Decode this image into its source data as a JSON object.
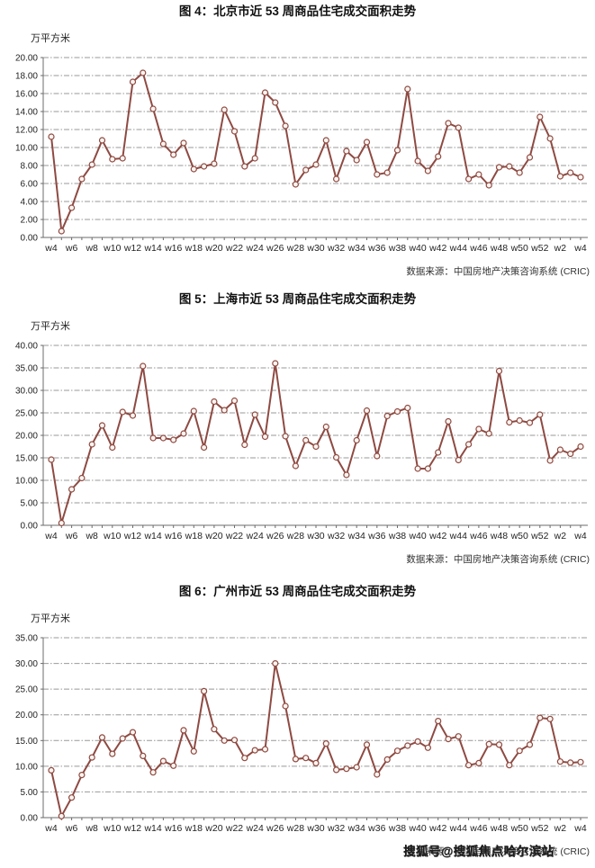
{
  "watermark": {
    "text": "搜狐号@搜狐焦点哈尔滨站"
  },
  "chart_data": [
    {
      "type": "line",
      "title": "图 4：北京市近 53 周商品住宅成交面积走势",
      "unit_label": "万平方米",
      "source": "数据来源：中国房地产决策咨询系统 (CRIC)",
      "ylim": [
        0,
        20
      ],
      "ytick_step": 2,
      "x_tick_interval": 2,
      "grid": true,
      "legend": "none",
      "line_color": "#8e4a42",
      "marker_fill": "#fdf4f0",
      "categories": [
        "w4",
        "w5",
        "w6",
        "w7",
        "w8",
        "w9",
        "w10",
        "w11",
        "w12",
        "w13",
        "w14",
        "w15",
        "w16",
        "w17",
        "w18",
        "w19",
        "w20",
        "w21",
        "w22",
        "w23",
        "w24",
        "w25",
        "w26",
        "w27",
        "w28",
        "w29",
        "w30",
        "w31",
        "w32",
        "w33",
        "w34",
        "w35",
        "w36",
        "w37",
        "w38",
        "w39",
        "w40",
        "w41",
        "w42",
        "w43",
        "w44",
        "w45",
        "w46",
        "w47",
        "w48",
        "w49",
        "w50",
        "w51",
        "w52",
        "w1",
        "w2",
        "w3",
        "w4"
      ],
      "values": [
        11.2,
        0.7,
        3.3,
        6.5,
        8.1,
        10.8,
        8.7,
        8.8,
        17.3,
        18.3,
        14.3,
        10.4,
        9.2,
        10.5,
        7.6,
        7.9,
        8.2,
        14.2,
        11.8,
        7.9,
        8.8,
        16.1,
        15.0,
        12.4,
        5.9,
        7.5,
        8.1,
        10.8,
        6.5,
        9.6,
        8.6,
        10.6,
        7.0,
        7.2,
        9.7,
        16.5,
        8.5,
        7.4,
        9.0,
        12.7,
        12.2,
        6.5,
        7.0,
        5.8,
        7.8,
        7.9,
        7.2,
        8.9,
        13.4,
        11.0,
        6.8,
        7.2,
        6.7
      ]
    },
    {
      "type": "line",
      "title": "图 5：上海市近 53 周商品住宅成交面积走势",
      "unit_label": "万平方米",
      "source": "数据来源：中国房地产决策咨询系统 (CRIC)",
      "ylim": [
        0,
        40
      ],
      "ytick_step": 5,
      "x_tick_interval": 2,
      "grid": true,
      "legend": "none",
      "line_color": "#8e4a42",
      "marker_fill": "#fdf4f0",
      "categories": [
        "w4",
        "w5",
        "w6",
        "w7",
        "w8",
        "w9",
        "w10",
        "w11",
        "w12",
        "w13",
        "w14",
        "w15",
        "w16",
        "w17",
        "w18",
        "w19",
        "w20",
        "w21",
        "w22",
        "w23",
        "w24",
        "w25",
        "w26",
        "w27",
        "w28",
        "w29",
        "w30",
        "w31",
        "w32",
        "w33",
        "w34",
        "w35",
        "w36",
        "w37",
        "w38",
        "w39",
        "w40",
        "w41",
        "w42",
        "w43",
        "w44",
        "w45",
        "w46",
        "w47",
        "w48",
        "w49",
        "w50",
        "w51",
        "w52",
        "w1",
        "w2",
        "w3",
        "w4"
      ],
      "values": [
        14.6,
        0.5,
        8.0,
        10.5,
        18.0,
        22.2,
        17.3,
        25.2,
        24.4,
        35.4,
        19.4,
        19.4,
        19.0,
        20.4,
        25.4,
        17.3,
        27.5,
        25.6,
        27.7,
        17.9,
        24.6,
        19.7,
        36.0,
        19.8,
        13.2,
        18.9,
        17.5,
        21.9,
        15.1,
        11.2,
        18.9,
        25.5,
        15.4,
        24.3,
        25.3,
        26.1,
        12.6,
        12.6,
        16.2,
        23.1,
        14.5,
        18.0,
        21.4,
        20.4,
        34.3,
        22.9,
        23.3,
        22.8,
        24.6,
        14.4,
        16.8,
        15.9,
        17.5
      ]
    },
    {
      "type": "line",
      "title": "图 6：广州市近 53 周商品住宅成交面积走势",
      "unit_label": "万平方米",
      "source": "数据来源：中国房地产决策咨询系统 (CRIC)",
      "ylim": [
        0,
        35
      ],
      "ytick_step": 5,
      "x_tick_interval": 2,
      "grid": true,
      "legend": "none",
      "line_color": "#8e4a42",
      "marker_fill": "#fdf4f0",
      "categories": [
        "w4",
        "w5",
        "w6",
        "w7",
        "w8",
        "w9",
        "w10",
        "w11",
        "w12",
        "w13",
        "w14",
        "w15",
        "w16",
        "w17",
        "w18",
        "w19",
        "w20",
        "w21",
        "w22",
        "w23",
        "w24",
        "w25",
        "w26",
        "w27",
        "w28",
        "w29",
        "w30",
        "w31",
        "w32",
        "w33",
        "w34",
        "w35",
        "w36",
        "w37",
        "w38",
        "w39",
        "w40",
        "w41",
        "w42",
        "w43",
        "w44",
        "w45",
        "w46",
        "w47",
        "w48",
        "w49",
        "w50",
        "w51",
        "w52",
        "w1",
        "w2",
        "w3",
        "w4"
      ],
      "values": [
        9.2,
        0.3,
        3.9,
        8.3,
        11.7,
        15.6,
        12.4,
        15.4,
        16.6,
        12.0,
        8.8,
        11.0,
        10.1,
        17.0,
        12.9,
        24.6,
        17.2,
        15.0,
        15.1,
        11.6,
        13.1,
        13.3,
        30.0,
        21.7,
        11.4,
        11.6,
        10.6,
        14.4,
        9.3,
        9.5,
        9.8,
        14.2,
        8.4,
        11.3,
        13.0,
        14.0,
        14.8,
        13.6,
        18.8,
        15.3,
        15.8,
        10.2,
        10.6,
        14.3,
        14.2,
        10.2,
        13.0,
        14.2,
        19.4,
        19.2,
        10.9,
        10.7,
        10.8
      ]
    }
  ]
}
